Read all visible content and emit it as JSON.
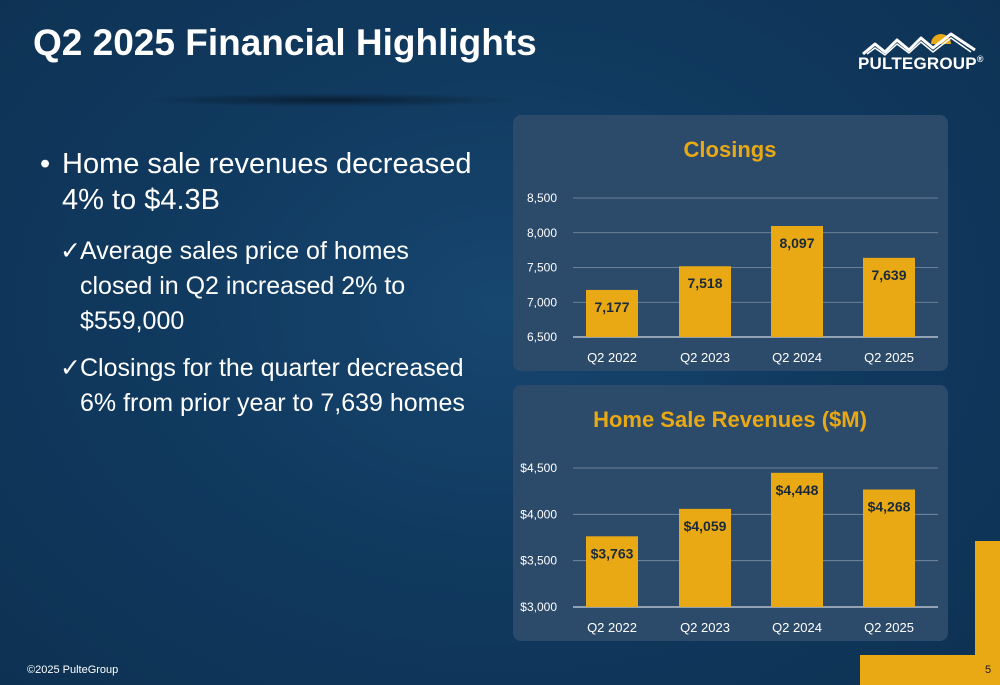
{
  "slide": {
    "title": "Q2 2025 Financial Highlights",
    "logo": {
      "text": "PULTEGROUP",
      "mark": "®",
      "icon": "roofline-sun-logo"
    },
    "bullets": [
      {
        "text": "Home sale revenues decreased 4% to $4.3B",
        "subs": [
          "Average sales price of homes closed in Q2 increased 2% to $559,000",
          "Closings for the quarter decreased 6% from prior year to 7,639 homes"
        ]
      }
    ],
    "footer": {
      "copyright": "©2025 PulteGroup",
      "page": "5"
    }
  },
  "colors": {
    "background": "#0d3152",
    "panel": "#2c4a6a",
    "accent": "#e8a915",
    "bar": "#e8a915",
    "label": "#1b2a3a"
  },
  "chart_data": [
    {
      "type": "bar",
      "title": "Closings",
      "categories": [
        "Q2 2022",
        "Q2 2023",
        "Q2 2024",
        "Q2 2025"
      ],
      "values": [
        7177,
        7518,
        8097,
        7639
      ],
      "value_labels": [
        "7,177",
        "7,518",
        "8,097",
        "7,639"
      ],
      "ylim": [
        6500,
        8500
      ],
      "yticks": [
        6500,
        7000,
        7500,
        8000,
        8500
      ],
      "ytick_labels": [
        "6,500",
        "7,000",
        "7,500",
        "8,000",
        "8,500"
      ],
      "grid": true,
      "xlabel": "",
      "ylabel": ""
    },
    {
      "type": "bar",
      "title": "Home Sale Revenues ($M)",
      "categories": [
        "Q2 2022",
        "Q2 2023",
        "Q2 2024",
        "Q2 2025"
      ],
      "values": [
        3763,
        4059,
        4448,
        4268
      ],
      "value_labels": [
        "$3,763",
        "$4,059",
        "$4,448",
        "$4,268"
      ],
      "ylim": [
        3000,
        4500
      ],
      "yticks": [
        3000,
        3500,
        4000,
        4500
      ],
      "ytick_labels": [
        "$3,000",
        "$3,500",
        "$4,000",
        "$4,500"
      ],
      "grid": true,
      "xlabel": "",
      "ylabel": ""
    }
  ]
}
